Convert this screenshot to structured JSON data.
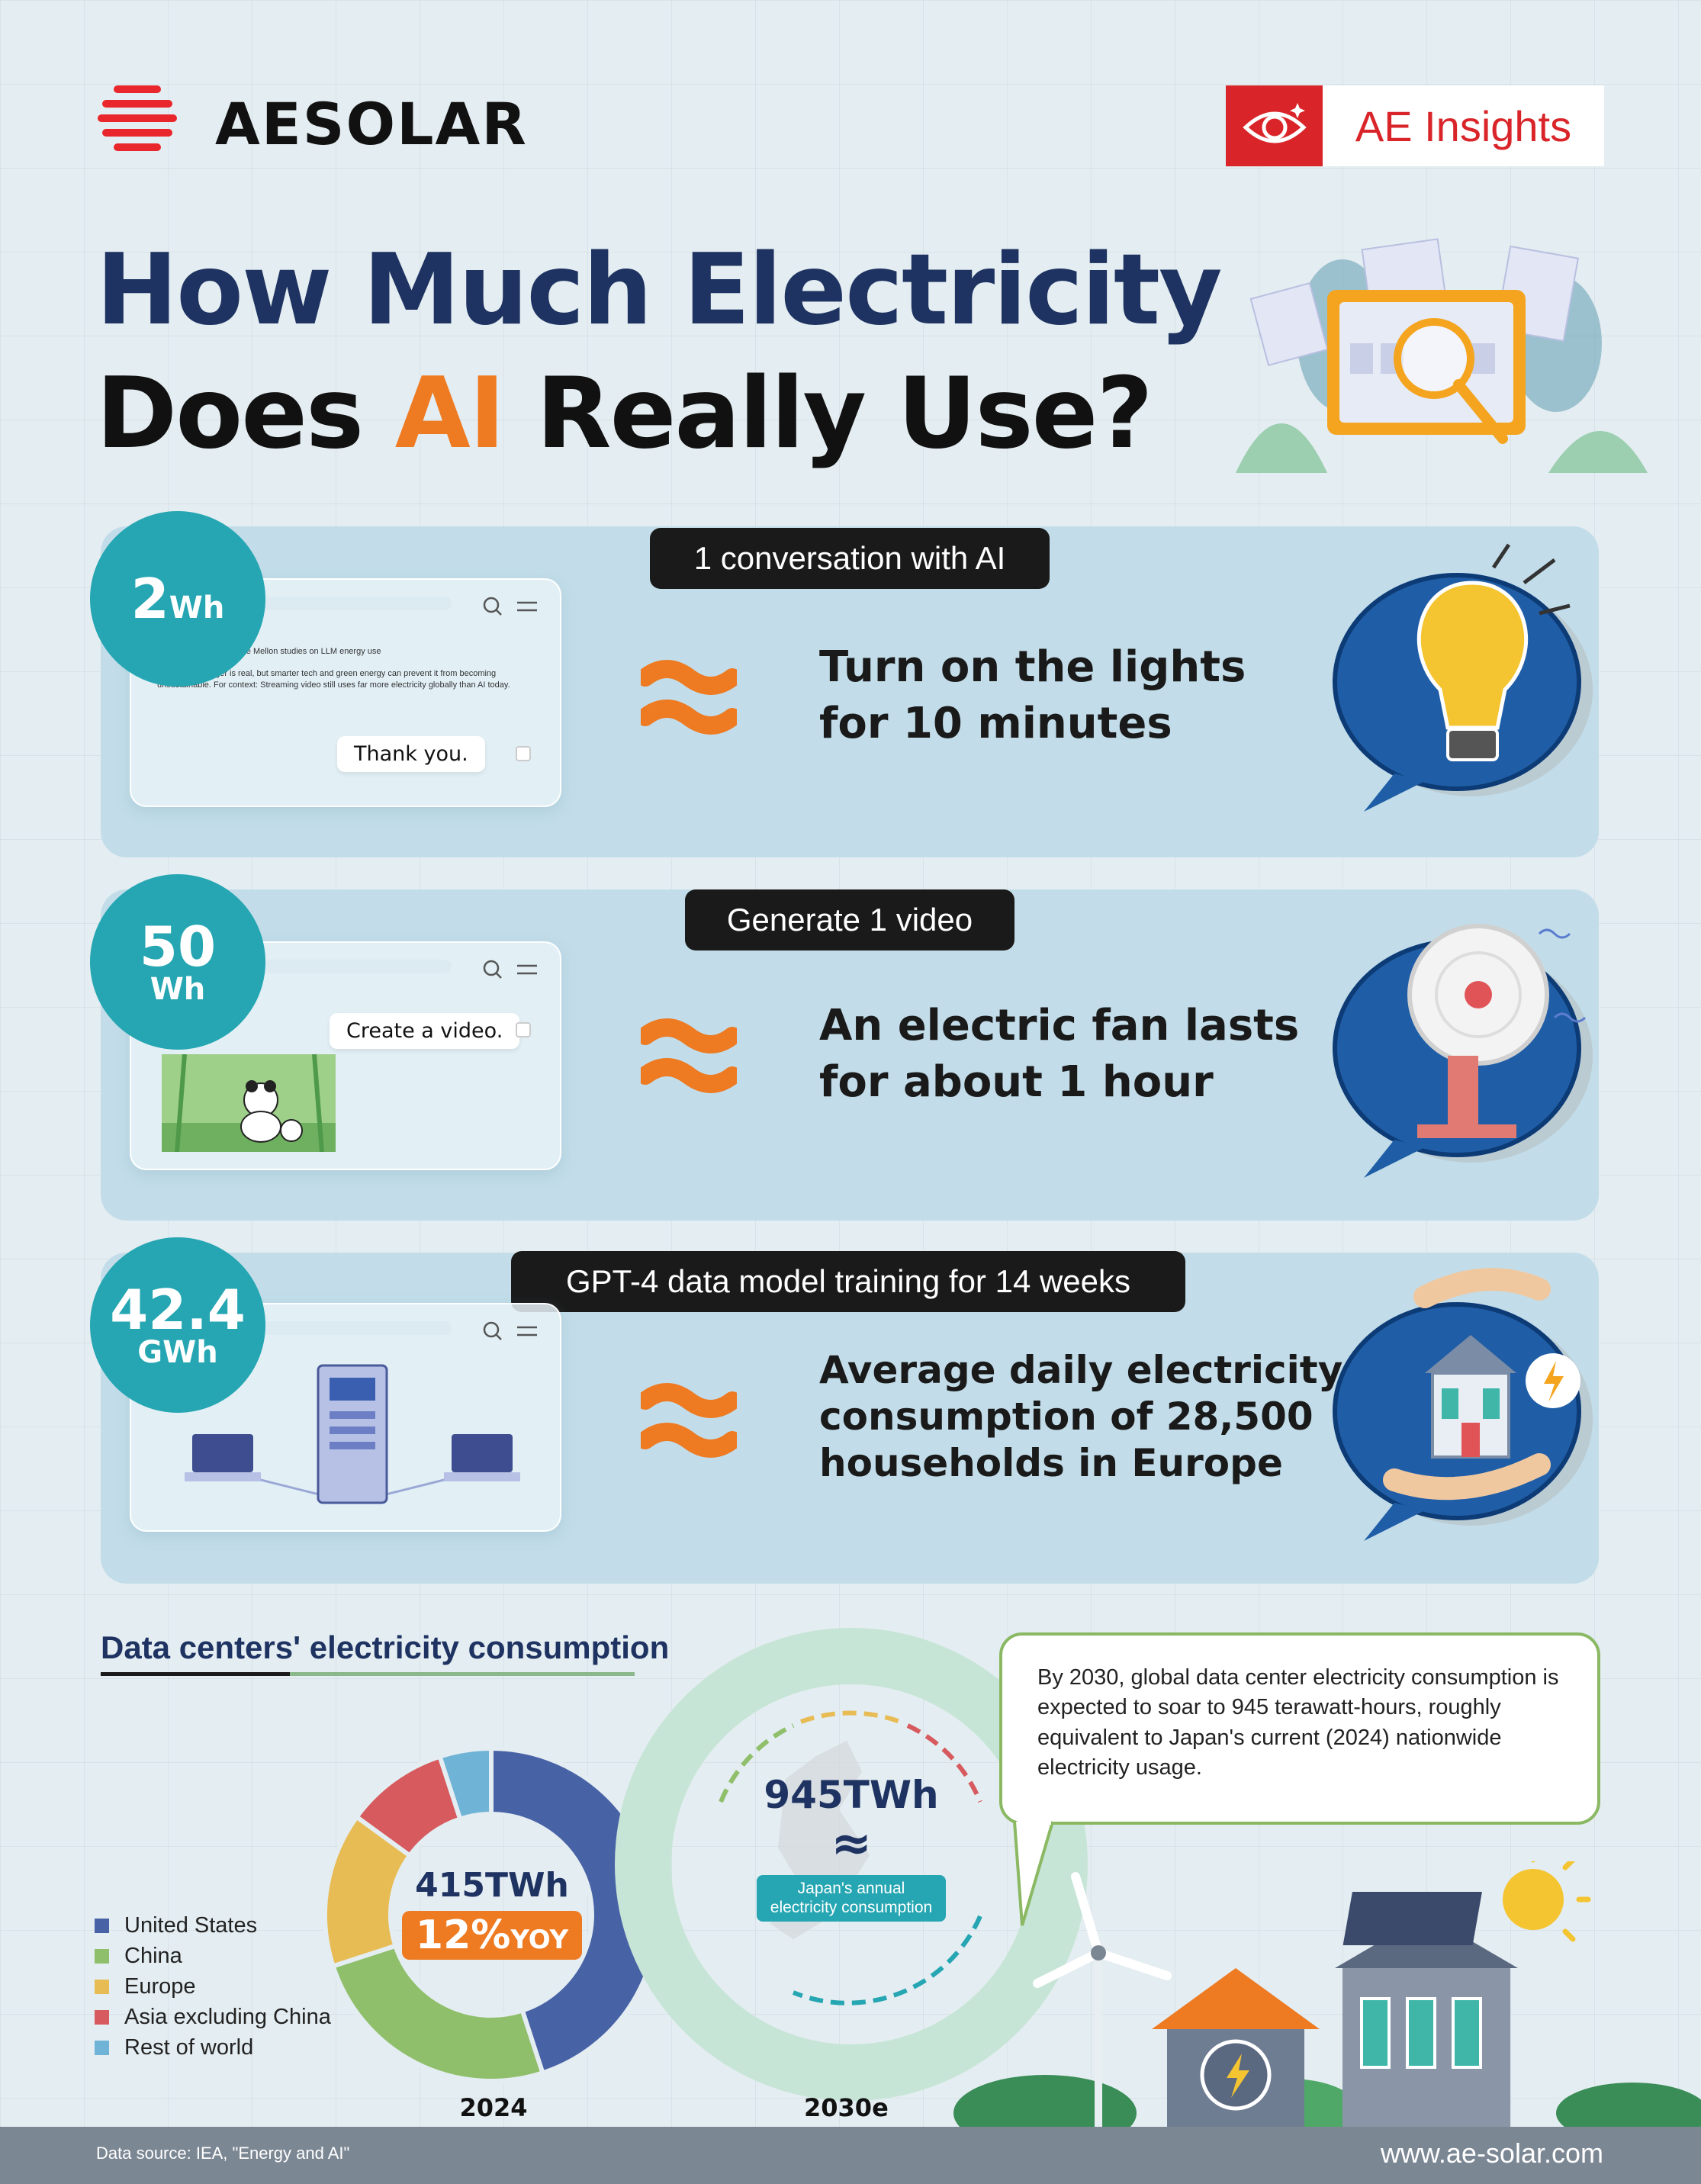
{
  "header": {
    "brand": "AESOLAR",
    "badge_label": "AE Insights",
    "title_line1": "How Much Electricity",
    "title_line2_pre": "Does ",
    "title_line2_ai": "AI",
    "title_line2_post": " Really Use?"
  },
  "comparisons": [
    {
      "amount_num": "2",
      "amount_unit": "Wh",
      "task": "1 conversation with AI",
      "equivalent_line1": "Turn on the lights",
      "equivalent_line2": "for 10 minutes",
      "chat_header": "Hugging Face · Carnegie Mellon studies on LLM energy use",
      "chat_body": "AI's energy hunger is real, but smarter tech and green energy can prevent it from becoming unsustainable. For context: Streaming video still uses far more electricity globally than AI today.",
      "chat_message": "Thank you."
    },
    {
      "amount_num": "50",
      "amount_unit": "Wh",
      "task": "Generate 1 video",
      "equivalent_line1": "An electric fan lasts",
      "equivalent_line2": "for about 1 hour",
      "chat_message": "Create a video."
    },
    {
      "amount_num": "42.4",
      "amount_unit": "GWh",
      "task": "GPT-4 data model training for 14 weeks",
      "equivalent_line1": "Average daily electricity",
      "equivalent_line2": "consumption of 28,500",
      "equivalent_line3": "households in Europe"
    }
  ],
  "data_centers": {
    "section_title_a": "Data centers'",
    "section_title_b": " electricity consumption",
    "donut_2024": {
      "total": "415TWh",
      "growth": "12%",
      "growth_unit": "YOY",
      "year": "2024"
    },
    "projection_2030": {
      "total": "945TWh",
      "approx_symbol": "≈",
      "label_line1": "Japan's annual",
      "label_line2": "electricity consumption",
      "year": "2030e"
    },
    "callout": "By 2030, global data center electricity consumption is expected to soar to 945 terawatt-hours, roughly equivalent to Japan's current (2024) nationwide electricity usage."
  },
  "chart_data": {
    "type": "pie",
    "title": "",
    "categories": [
      "United States",
      "China",
      "Europe",
      "Asia excluding China",
      "Rest of world"
    ],
    "values": [
      45,
      25,
      15,
      10,
      5
    ],
    "colors": [
      "#4862a6",
      "#8fbf6b",
      "#e8bc54",
      "#d65a5e",
      "#6fb3d6"
    ],
    "legend": "bottom-left"
  },
  "footer": {
    "source": "Data source: IEA, \"Energy and AI\"",
    "website": "www.ae-solar.com"
  },
  "colors": {
    "navy": "#1e3361",
    "orange": "#ee7a22",
    "red": "#d9252a",
    "teal": "#25a6b2",
    "card": "#c2dde9"
  }
}
